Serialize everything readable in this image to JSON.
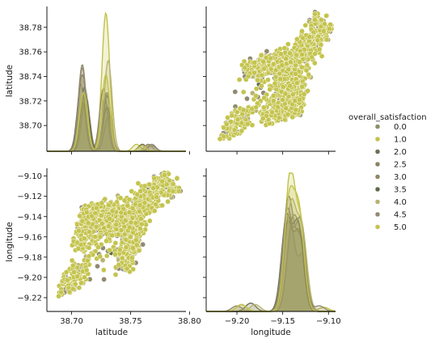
{
  "chart_data": {
    "type": "pairplot",
    "variables": [
      "latitude",
      "longitude"
    ],
    "hue": "overall_satisfaction",
    "legend": {
      "title": "overall_satisfaction",
      "placement": "right",
      "entries": [
        {
          "label": "0.0",
          "color": "#8e8f6a"
        },
        {
          "label": "1.0",
          "color": "#c2c24a"
        },
        {
          "label": "2.0",
          "color": "#6e6e52"
        },
        {
          "label": "2.5",
          "color": "#8a8366"
        },
        {
          "label": "3.0",
          "color": "#8f8668"
        },
        {
          "label": "3.5",
          "color": "#5e6a4a"
        },
        {
          "label": "4.0",
          "color": "#b7b370"
        },
        {
          "label": "4.5",
          "color": "#928972"
        },
        {
          "label": "5.0",
          "color": "#c4c44e"
        }
      ]
    },
    "axes": {
      "latitude": {
        "label": "latitude",
        "range": [
          38.679,
          38.797
        ],
        "ticks": [
          "38.70",
          "38.72",
          "38.74",
          "38.76",
          "38.78"
        ],
        "x_ticks": [
          "38.70",
          "38.75",
          "38.80"
        ]
      },
      "longitude": {
        "label": "longitude",
        "range": [
          -9.2336,
          -9.0923
        ],
        "ticks": [
          "-9.10",
          "-9.12",
          "-9.14",
          "-9.16",
          "-9.18",
          "-9.20",
          "-9.22"
        ],
        "x_ticks": [
          "-9.20",
          "-9.15",
          "-9.10"
        ]
      }
    },
    "scatter_region": {
      "latitude": [
        38.69,
        38.795
      ],
      "longitude": [
        -9.228,
        -9.093
      ],
      "description_points": [
        {
          "latitude": 38.692,
          "longitude": -9.215
        },
        {
          "latitude": 38.7,
          "longitude": -9.205
        },
        {
          "latitude": 38.705,
          "longitude": -9.17
        },
        {
          "latitude": 38.71,
          "longitude": -9.145
        },
        {
          "latitude": 38.712,
          "longitude": -9.14
        },
        {
          "latitude": 38.715,
          "longitude": -9.135
        },
        {
          "latitude": 38.72,
          "longitude": -9.14
        },
        {
          "latitude": 38.725,
          "longitude": -9.145
        },
        {
          "latitude": 38.73,
          "longitude": -9.135
        },
        {
          "latitude": 38.735,
          "longitude": -9.14
        },
        {
          "latitude": 38.74,
          "longitude": -9.15
        },
        {
          "latitude": 38.745,
          "longitude": -9.145
        },
        {
          "latitude": 38.75,
          "longitude": -9.15
        },
        {
          "latitude": 38.755,
          "longitude": -9.14
        },
        {
          "latitude": 38.76,
          "longitude": -9.13
        },
        {
          "latitude": 38.765,
          "longitude": -9.125
        },
        {
          "latitude": 38.77,
          "longitude": -9.115
        },
        {
          "latitude": 38.775,
          "longitude": -9.105
        },
        {
          "latitude": 38.78,
          "longitude": -9.1
        },
        {
          "latitude": 38.788,
          "longitude": -9.108
        },
        {
          "latitude": 38.745,
          "longitude": -9.19
        },
        {
          "latitude": 38.748,
          "longitude": -9.18
        },
        {
          "latitude": 38.752,
          "longitude": -9.17
        }
      ]
    },
    "latitude_kde_peaks": [
      {
        "label": "0.0",
        "peaks": [
          {
            "x": 38.709,
            "h": 0.62
          },
          {
            "x": 38.728,
            "h": 0.38
          },
          {
            "x": 38.768,
            "h": 0.04
          }
        ]
      },
      {
        "label": "1.0",
        "peaks": [
          {
            "x": 38.71,
            "h": 0.35
          },
          {
            "x": 38.729,
            "h": 0.99
          },
          {
            "x": 38.755,
            "h": 0.05
          }
        ]
      },
      {
        "label": "2.0",
        "peaks": [
          {
            "x": 38.708,
            "h": 0.48
          },
          {
            "x": 38.73,
            "h": 0.32
          },
          {
            "x": 38.76,
            "h": 0.05
          }
        ]
      },
      {
        "label": "2.5",
        "peaks": [
          {
            "x": 38.712,
            "h": 0.4
          },
          {
            "x": 38.731,
            "h": 0.25
          }
        ]
      },
      {
        "label": "3.0",
        "peaks": [
          {
            "x": 38.709,
            "h": 0.55
          },
          {
            "x": 38.727,
            "h": 0.45
          },
          {
            "x": 38.765,
            "h": 0.05
          }
        ]
      },
      {
        "label": "3.5",
        "peaks": [
          {
            "x": 38.711,
            "h": 0.46
          },
          {
            "x": 38.73,
            "h": 0.4
          }
        ]
      },
      {
        "label": "4.0",
        "peaks": [
          {
            "x": 38.71,
            "h": 0.52
          },
          {
            "x": 38.731,
            "h": 0.65
          },
          {
            "x": 38.765,
            "h": 0.04
          }
        ]
      },
      {
        "label": "4.5",
        "peaks": [
          {
            "x": 38.709,
            "h": 0.6
          },
          {
            "x": 38.73,
            "h": 0.42
          },
          {
            "x": 38.768,
            "h": 0.05
          }
        ]
      },
      {
        "label": "5.0",
        "peaks": [
          {
            "x": 38.71,
            "h": 0.42
          },
          {
            "x": 38.729,
            "h": 0.55
          },
          {
            "x": 38.76,
            "h": 0.04
          }
        ]
      }
    ],
    "longitude_kde_peaks": [
      {
        "label": "0.0",
        "peaks": [
          {
            "x": -9.143,
            "h": 0.7
          },
          {
            "x": -9.128,
            "h": 0.4
          },
          {
            "x": -9.195,
            "h": 0.05
          }
        ]
      },
      {
        "label": "1.0",
        "peaks": [
          {
            "x": -9.142,
            "h": 0.98
          },
          {
            "x": -9.13,
            "h": 0.6
          },
          {
            "x": -9.105,
            "h": 0.03
          }
        ]
      },
      {
        "label": "2.0",
        "peaks": [
          {
            "x": -9.145,
            "h": 0.62
          },
          {
            "x": -9.132,
            "h": 0.55
          },
          {
            "x": -9.185,
            "h": 0.06
          }
        ]
      },
      {
        "label": "2.5",
        "peaks": [
          {
            "x": -9.14,
            "h": 0.58
          },
          {
            "x": -9.13,
            "h": 0.45
          }
        ]
      },
      {
        "label": "3.0",
        "peaks": [
          {
            "x": -9.144,
            "h": 0.8
          },
          {
            "x": -9.131,
            "h": 0.5
          },
          {
            "x": -9.2,
            "h": 0.04
          }
        ]
      },
      {
        "label": "3.5",
        "peaks": [
          {
            "x": -9.146,
            "h": 0.66
          },
          {
            "x": -9.133,
            "h": 0.62
          }
        ]
      },
      {
        "label": "4.0",
        "peaks": [
          {
            "x": -9.141,
            "h": 0.75
          },
          {
            "x": -9.129,
            "h": 0.58
          },
          {
            "x": -9.18,
            "h": 0.05
          }
        ]
      },
      {
        "label": "4.5",
        "peaks": [
          {
            "x": -9.145,
            "h": 0.72
          },
          {
            "x": -9.131,
            "h": 0.65
          },
          {
            "x": -9.11,
            "h": 0.04
          }
        ]
      },
      {
        "label": "5.0",
        "peaks": [
          {
            "x": -9.143,
            "h": 0.78
          },
          {
            "x": -9.132,
            "h": 0.68
          },
          {
            "x": -9.195,
            "h": 0.05
          }
        ]
      }
    ]
  }
}
